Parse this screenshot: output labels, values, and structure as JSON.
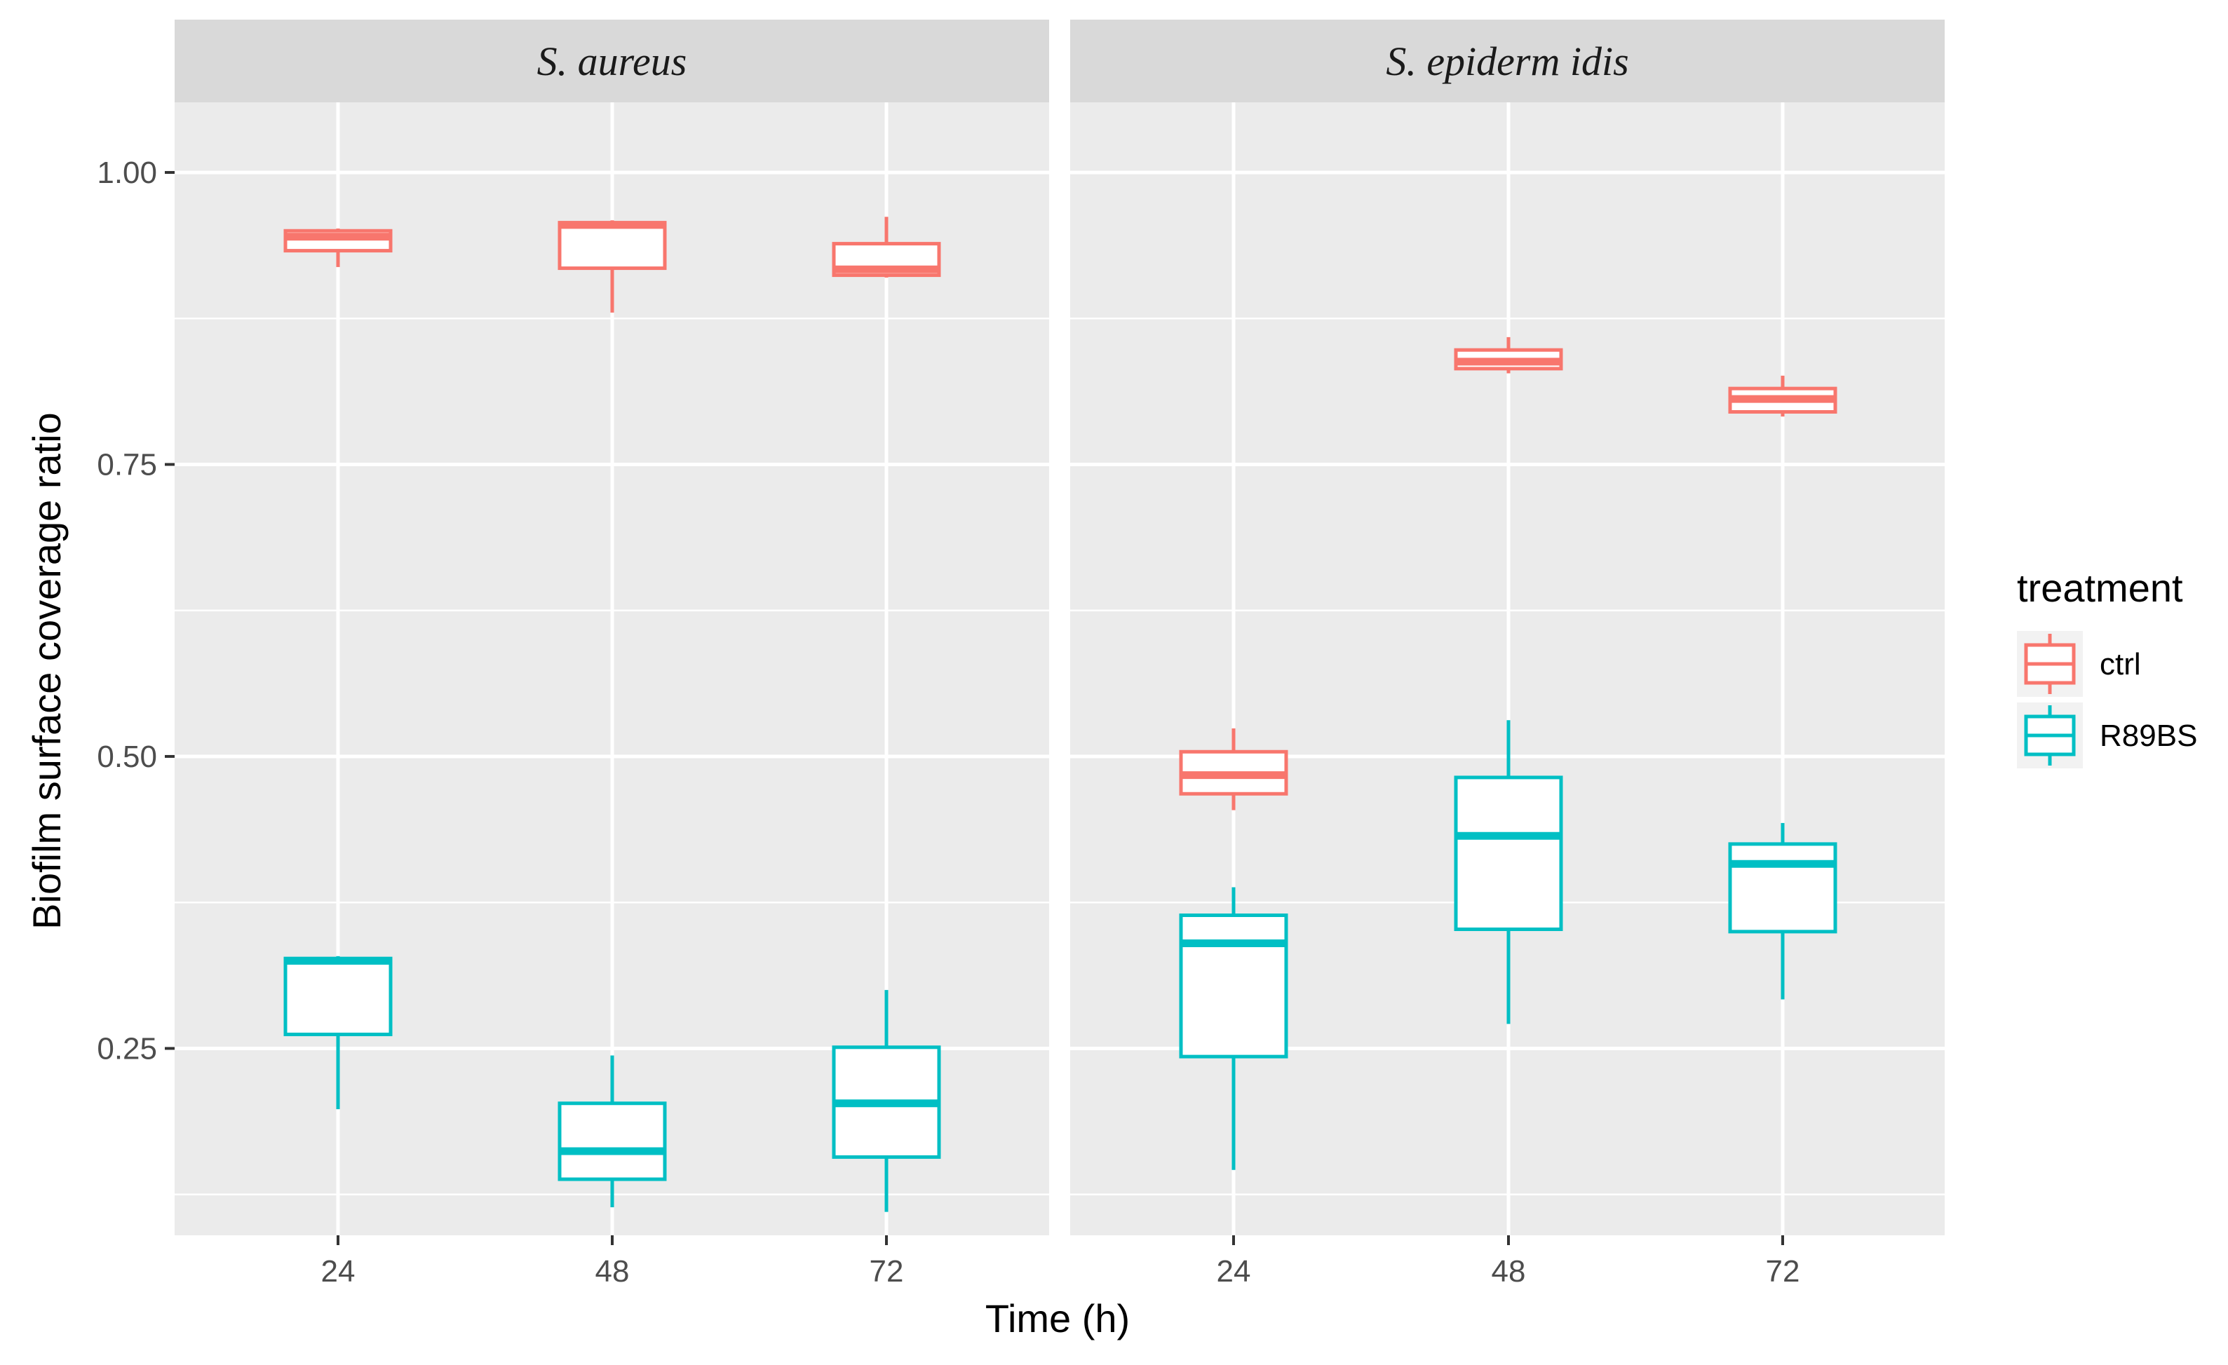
{
  "chart_data": {
    "type": "box",
    "xlabel": "Time (h)",
    "ylabel": "Biofilm  surface coverage ratio",
    "ylim": [
      0.09,
      1.06
    ],
    "yticks": [
      0.25,
      0.5,
      0.75,
      1.0
    ],
    "ytick_labels": [
      "0.25",
      "0.50",
      "0.75",
      "1.00"
    ],
    "categories": [
      "24",
      "48",
      "72"
    ],
    "legend": {
      "title": "treatment",
      "placement": "right",
      "entries": [
        {
          "name": "ctrl",
          "color": "#F8766D"
        },
        {
          "name": "R89BS",
          "color": "#00BFC4"
        }
      ]
    },
    "colors": {
      "panel_bg": "#EBEBEB",
      "strip_bg": "#D9D9D9",
      "grid": "#FFFFFF",
      "box_fill": "#FFFFFF"
    },
    "panels": [
      {
        "title": "S. aureus",
        "series": [
          {
            "name": "ctrl",
            "boxes": [
              {
                "x": "24",
                "whisker_low": 0.919,
                "q1": 0.933,
                "median": 0.945,
                "q3": 0.95,
                "whisker_high": 0.952
              },
              {
                "x": "48",
                "whisker_low": 0.88,
                "q1": 0.918,
                "median": 0.955,
                "q3": 0.957,
                "whisker_high": 0.959
              },
              {
                "x": "72",
                "whisker_low": 0.91,
                "q1": 0.912,
                "median": 0.917,
                "q3": 0.939,
                "whisker_high": 0.962
              }
            ]
          },
          {
            "name": "R89BS",
            "boxes": [
              {
                "x": "24",
                "whisker_low": 0.198,
                "q1": 0.262,
                "median": 0.325,
                "q3": 0.327,
                "whisker_high": 0.329
              },
              {
                "x": "48",
                "whisker_low": 0.114,
                "q1": 0.138,
                "median": 0.162,
                "q3": 0.203,
                "whisker_high": 0.244
              },
              {
                "x": "72",
                "whisker_low": 0.11,
                "q1": 0.157,
                "median": 0.203,
                "q3": 0.251,
                "whisker_high": 0.3
              }
            ]
          }
        ]
      },
      {
        "title": "S. epiderm idis",
        "series": [
          {
            "name": "ctrl",
            "boxes": [
              {
                "x": "24",
                "whisker_low": 0.454,
                "q1": 0.468,
                "median": 0.484,
                "q3": 0.504,
                "whisker_high": 0.524
              },
              {
                "x": "48",
                "whisker_low": 0.828,
                "q1": 0.832,
                "median": 0.838,
                "q3": 0.848,
                "whisker_high": 0.859
              },
              {
                "x": "72",
                "whisker_low": 0.791,
                "q1": 0.795,
                "median": 0.806,
                "q3": 0.815,
                "whisker_high": 0.826
              }
            ]
          },
          {
            "name": "R89BS",
            "boxes": [
              {
                "x": "24",
                "whisker_low": 0.146,
                "q1": 0.243,
                "median": 0.34,
                "q3": 0.364,
                "whisker_high": 0.388
              },
              {
                "x": "48",
                "whisker_low": 0.271,
                "q1": 0.352,
                "median": 0.432,
                "q3": 0.482,
                "whisker_high": 0.531
              },
              {
                "x": "72",
                "whisker_low": 0.292,
                "q1": 0.35,
                "median": 0.408,
                "q3": 0.425,
                "whisker_high": 0.443
              }
            ]
          }
        ]
      }
    ]
  }
}
